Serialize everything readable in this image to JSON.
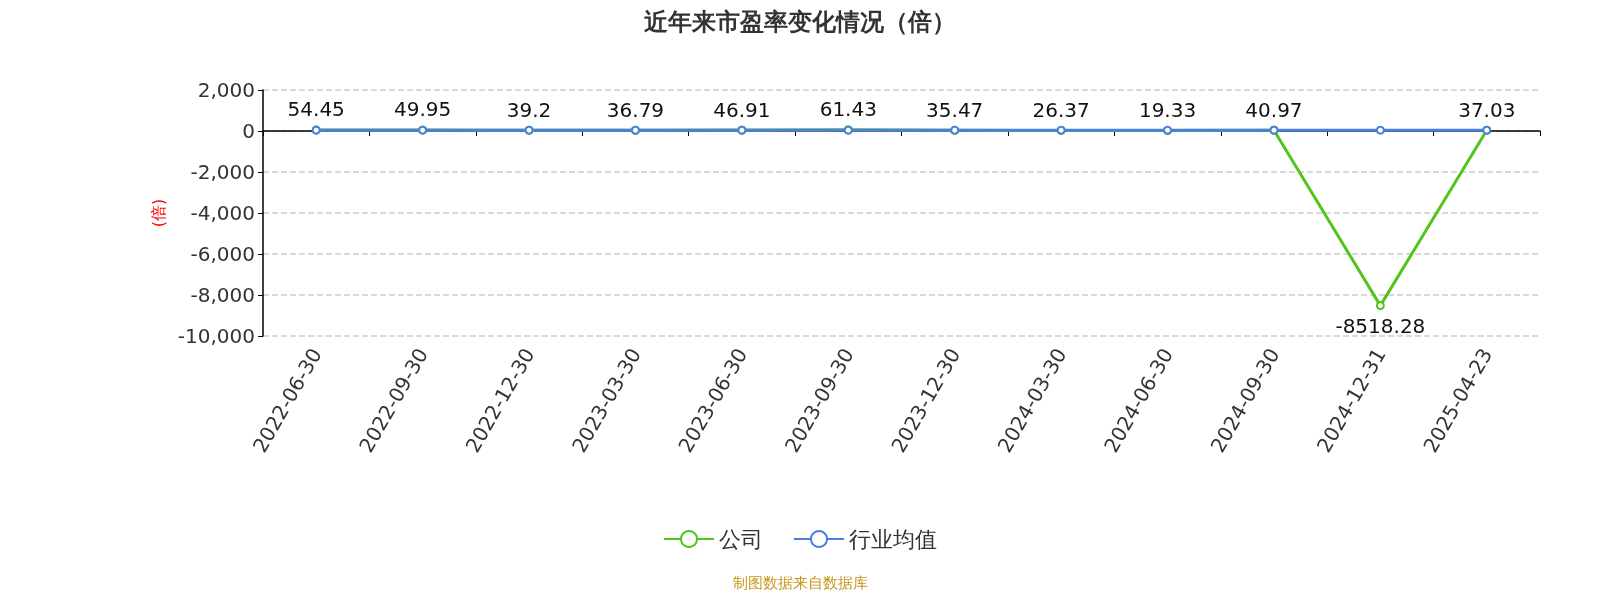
{
  "chart_data": {
    "type": "line",
    "title": "近年来市盈率变化情况（倍）",
    "ylabel": "(倍)",
    "categories": [
      "2022-06-30",
      "2022-09-30",
      "2022-12-30",
      "2023-03-30",
      "2023-06-30",
      "2023-09-30",
      "2023-12-30",
      "2024-03-30",
      "2024-06-30",
      "2024-09-30",
      "2024-12-31",
      "2025-04-23"
    ],
    "series": [
      {
        "name": "公司",
        "color": "#52c41a",
        "values": [
          54.45,
          49.95,
          39.2,
          36.79,
          46.91,
          61.43,
          35.47,
          26.37,
          19.33,
          40.97,
          -8518.28,
          37.03
        ],
        "data_labels": true
      },
      {
        "name": "行业均值",
        "color": "#4a7fe0",
        "values": [
          40,
          40,
          40,
          40,
          40,
          40,
          40,
          40,
          40,
          40,
          40,
          40
        ]
      }
    ],
    "ylim": [
      -10000,
      2000
    ],
    "yticks": [
      {
        "value": -10000,
        "label": "-10,000"
      },
      {
        "value": -8000,
        "label": "-8,000"
      },
      {
        "value": -6000,
        "label": "-6,000"
      },
      {
        "value": -4000,
        "label": "-4,000"
      },
      {
        "value": -2000,
        "label": "-2,000"
      },
      0,
      {
        "value": 2000,
        "label": "2,000"
      }
    ],
    "grid": "y",
    "legend": "bottom",
    "marker": "circle",
    "annotations": [
      "制图数据来自数据库"
    ]
  }
}
